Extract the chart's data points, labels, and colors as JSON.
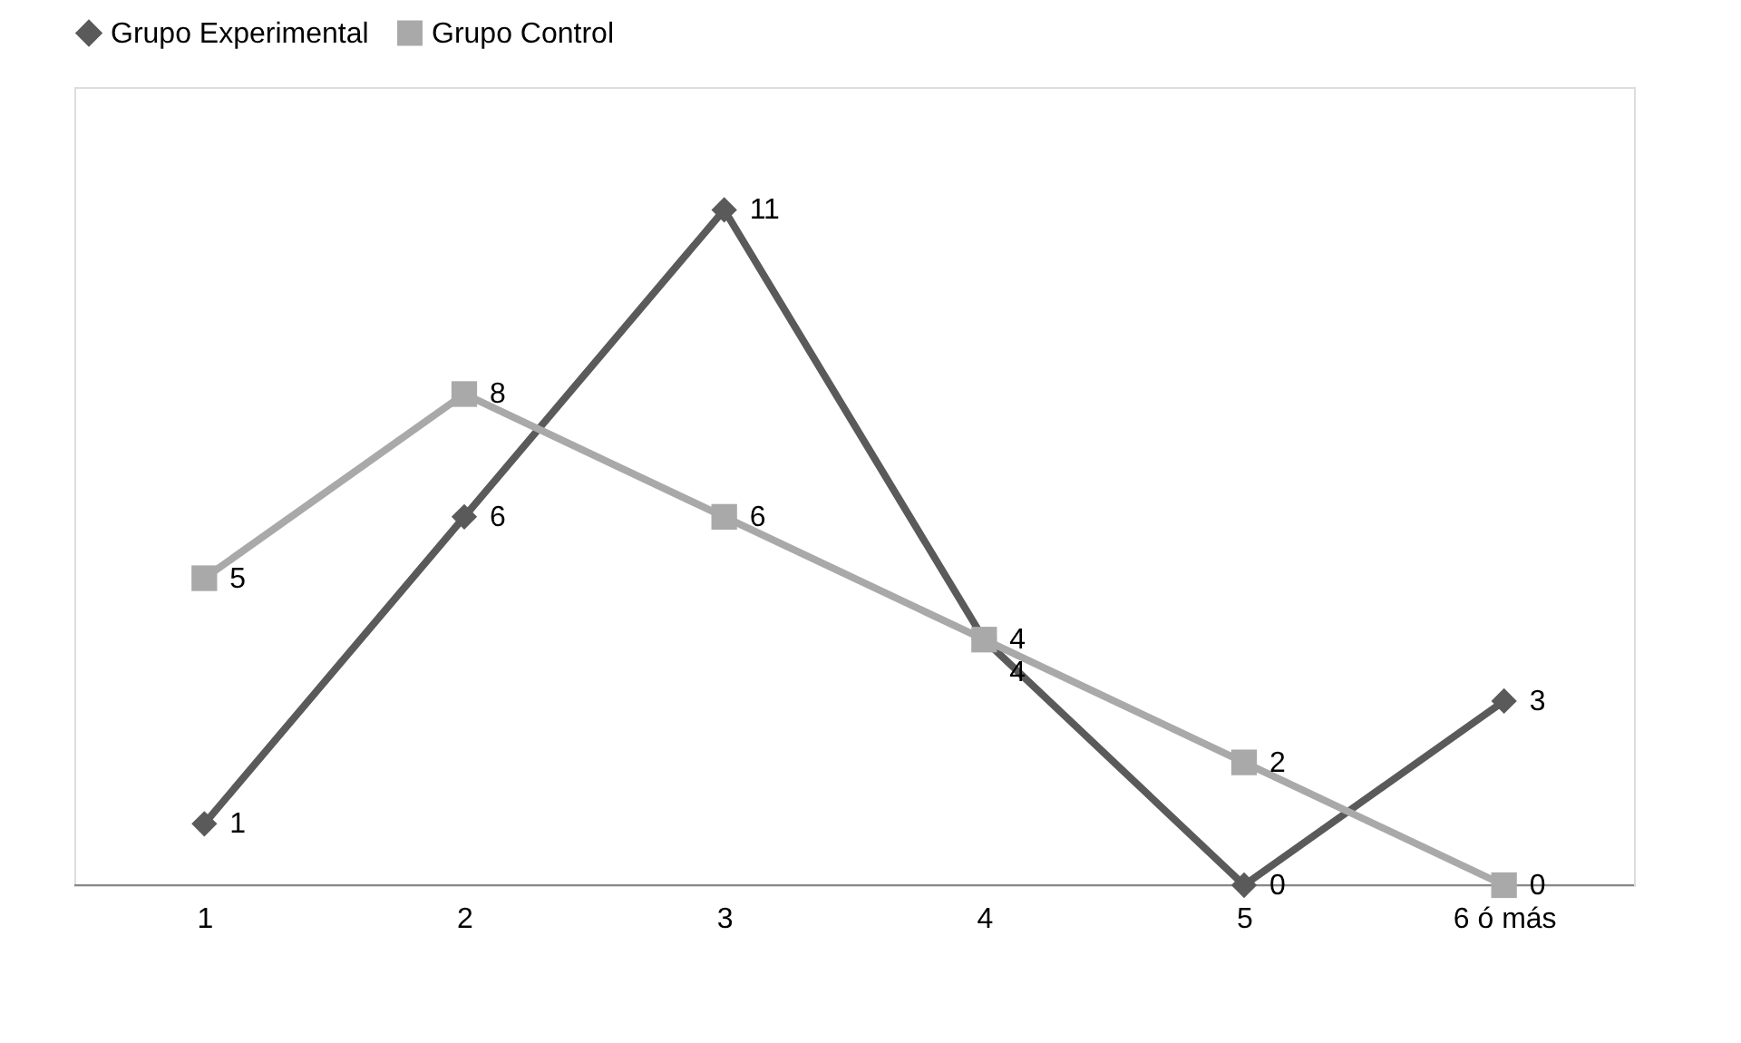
{
  "chart_data": {
    "type": "line",
    "categories": [
      "1",
      "2",
      "3",
      "4",
      "5",
      "6 ó más"
    ],
    "series": [
      {
        "name": "Grupo Experimental",
        "color": "#5a5a5a",
        "marker": "diamond",
        "values": [
          1,
          6,
          11,
          4,
          0,
          3
        ]
      },
      {
        "name": "Grupo Control",
        "color": "#a9a9a9",
        "marker": "square",
        "values": [
          5,
          8,
          6,
          4,
          2,
          0
        ]
      }
    ],
    "ylim": [
      0,
      13
    ],
    "data_labels": true,
    "legend": "top"
  }
}
